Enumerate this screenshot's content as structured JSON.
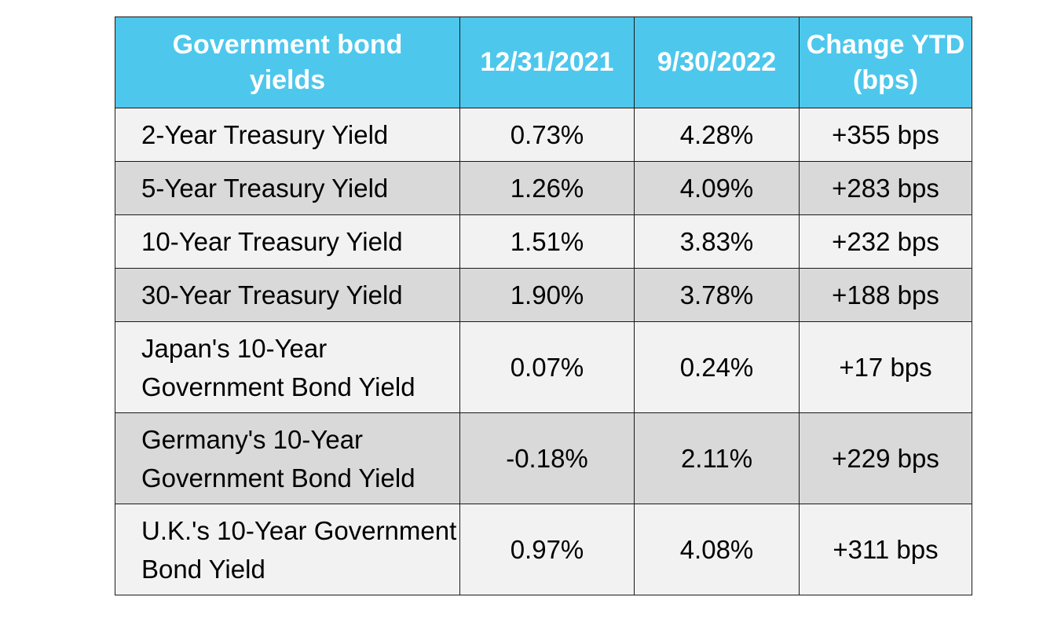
{
  "chart_data": {
    "type": "table",
    "columns": [
      "Government bond yields",
      "12/31/2021",
      "9/30/2022",
      "Change YTD (bps)"
    ],
    "rows": [
      [
        "2-Year Treasury Yield",
        "0.73%",
        "4.28%",
        "+355 bps"
      ],
      [
        "5-Year Treasury Yield",
        "1.26%",
        "4.09%",
        "+283 bps"
      ],
      [
        "10-Year Treasury Yield",
        "1.51%",
        "3.83%",
        "+232 bps"
      ],
      [
        "30-Year Treasury Yield",
        "1.90%",
        "3.78%",
        "+188 bps"
      ],
      [
        "Japan's 10-Year Government Bond Yield",
        "0.07%",
        "0.24%",
        "+17 bps"
      ],
      [
        "Germany's 10-Year Government Bond Yield",
        "-0.18%",
        "2.11%",
        "+229 bps"
      ],
      [
        "U.K.'s 10-Year Government Bond Yield",
        "0.97%",
        "4.08%",
        "+311 bps"
      ]
    ]
  },
  "colors": {
    "header_bg": "#4ec7ec",
    "header_text": "#ffffff",
    "row_light": "#f2f2f2",
    "row_dark": "#d9d9d9",
    "border": "#1a1a1a"
  }
}
